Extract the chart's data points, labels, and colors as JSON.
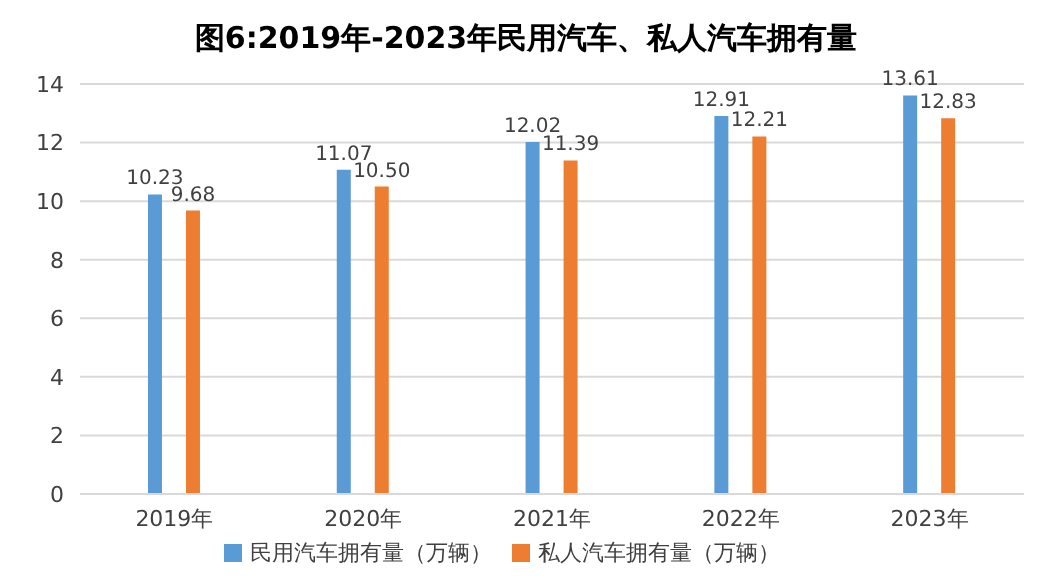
{
  "chart_data": {
    "type": "bar",
    "title": "图6:2019年-2023年民用汽车、私人汽车拥有量",
    "categories": [
      "2019年",
      "2020年",
      "2021年",
      "2022年",
      "2023年"
    ],
    "series": [
      {
        "name": "民用汽车拥有量（万辆）",
        "color": "#5b9bd5",
        "values": [
          10.23,
          11.07,
          12.02,
          12.91,
          13.61
        ]
      },
      {
        "name": "私人汽车拥有量（万辆）",
        "color": "#ed7d31",
        "values": [
          9.68,
          10.5,
          11.39,
          12.21,
          12.83
        ]
      }
    ],
    "value_labels": [
      [
        "10.23",
        "11.07",
        "12.02",
        "12.91",
        "13.61"
      ],
      [
        "9.68",
        "10.50",
        "11.39",
        "12.21",
        "12.83"
      ]
    ],
    "ylim": [
      0,
      14
    ],
    "yticks": [
      0,
      2,
      4,
      6,
      8,
      10,
      12,
      14
    ],
    "grid": "y",
    "legend": "bottom"
  }
}
